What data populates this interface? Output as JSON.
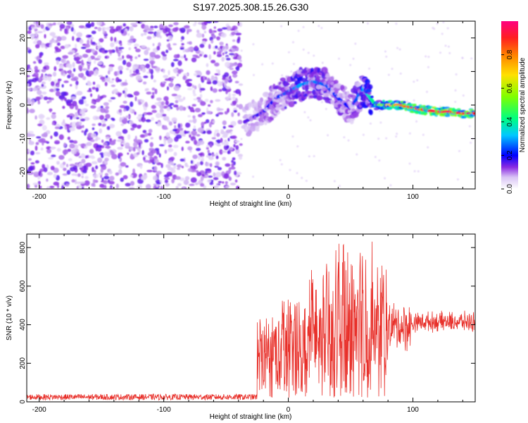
{
  "title": "S197.2025.308.15.26.G30",
  "chart_data": [
    {
      "type": "heatmap",
      "xlabel": "Height of straight line (km)",
      "ylabel": "Frequency (Hz)",
      "xlim": [
        -210,
        150
      ],
      "ylim": [
        -25,
        25
      ],
      "xticks": [
        -200,
        -100,
        0,
        100
      ],
      "yticks": [
        -20,
        -10,
        0,
        10,
        20
      ],
      "colorbar": {
        "label": "Normalized spectral amplitude",
        "range": [
          0,
          1
        ],
        "ticks": [
          "0.0",
          "0.2",
          "0.4",
          "0.6",
          "0.8"
        ]
      },
      "noise_region": {
        "x": [
          -210,
          -38
        ],
        "frequency": [
          -25,
          25
        ],
        "amplitude": 0.08
      },
      "ridge": [
        {
          "x": -35,
          "freq": -5,
          "amp": 0.15
        },
        {
          "x": -20,
          "freq": -2,
          "amp": 0.18
        },
        {
          "x": -10,
          "freq": 2,
          "amp": 0.22
        },
        {
          "x": 0,
          "freq": 4,
          "amp": 0.26
        },
        {
          "x": 10,
          "freq": 6,
          "amp": 0.3
        },
        {
          "x": 20,
          "freq": 7,
          "amp": 0.28
        },
        {
          "x": 30,
          "freq": 6,
          "amp": 0.25
        },
        {
          "x": 40,
          "freq": 2,
          "amp": 0.22
        },
        {
          "x": 50,
          "freq": -1,
          "amp": 0.2
        },
        {
          "x": 60,
          "freq": 5,
          "amp": 0.3
        },
        {
          "x": 70,
          "freq": 0,
          "amp": 0.45
        },
        {
          "x": 80,
          "freq": 0,
          "amp": 0.7
        },
        {
          "x": 90,
          "freq": 0,
          "amp": 0.8
        },
        {
          "x": 100,
          "freq": -1,
          "amp": 0.85
        },
        {
          "x": 110,
          "freq": -1.5,
          "amp": 0.9
        },
        {
          "x": 120,
          "freq": -2,
          "amp": 0.95
        },
        {
          "x": 130,
          "freq": -2,
          "amp": 0.95
        },
        {
          "x": 140,
          "freq": -2.5,
          "amp": 0.92
        },
        {
          "x": 150,
          "freq": -2.5,
          "amp": 0.9
        }
      ]
    },
    {
      "type": "line",
      "xlabel": "Height of straight line (km)",
      "ylabel": "SNR (10 * v/v)",
      "xlim": [
        -210,
        150
      ],
      "ylim": [
        0,
        870
      ],
      "xticks": [
        -200,
        -100,
        0,
        100
      ],
      "yticks": [
        0,
        200,
        400,
        600,
        800
      ],
      "series": [
        {
          "name": "SNR",
          "color": "#e8302a",
          "segments": [
            {
              "x": [
                -210,
                -25
              ],
              "baseline": 25,
              "spread": 15
            },
            {
              "x": [
                -25,
                -5
              ],
              "baseline": 220,
              "spread": 230
            },
            {
              "x": [
                -5,
                15
              ],
              "baseline": 250,
              "spread": 300
            },
            {
              "x": [
                15,
                35
              ],
              "baseline": 300,
              "spread": 420
            },
            {
              "x": [
                35,
                50
              ],
              "baseline": 320,
              "spread": 500
            },
            {
              "x": [
                50,
                68
              ],
              "baseline": 330,
              "spread": 520
            },
            {
              "x": [
                68,
                80
              ],
              "baseline": 330,
              "spread": 380
            },
            {
              "x": [
                80,
                100
              ],
              "baseline": 390,
              "spread": 150
            },
            {
              "x": [
                100,
                150
              ],
              "baseline": 415,
              "spread": 60
            }
          ]
        }
      ]
    }
  ]
}
